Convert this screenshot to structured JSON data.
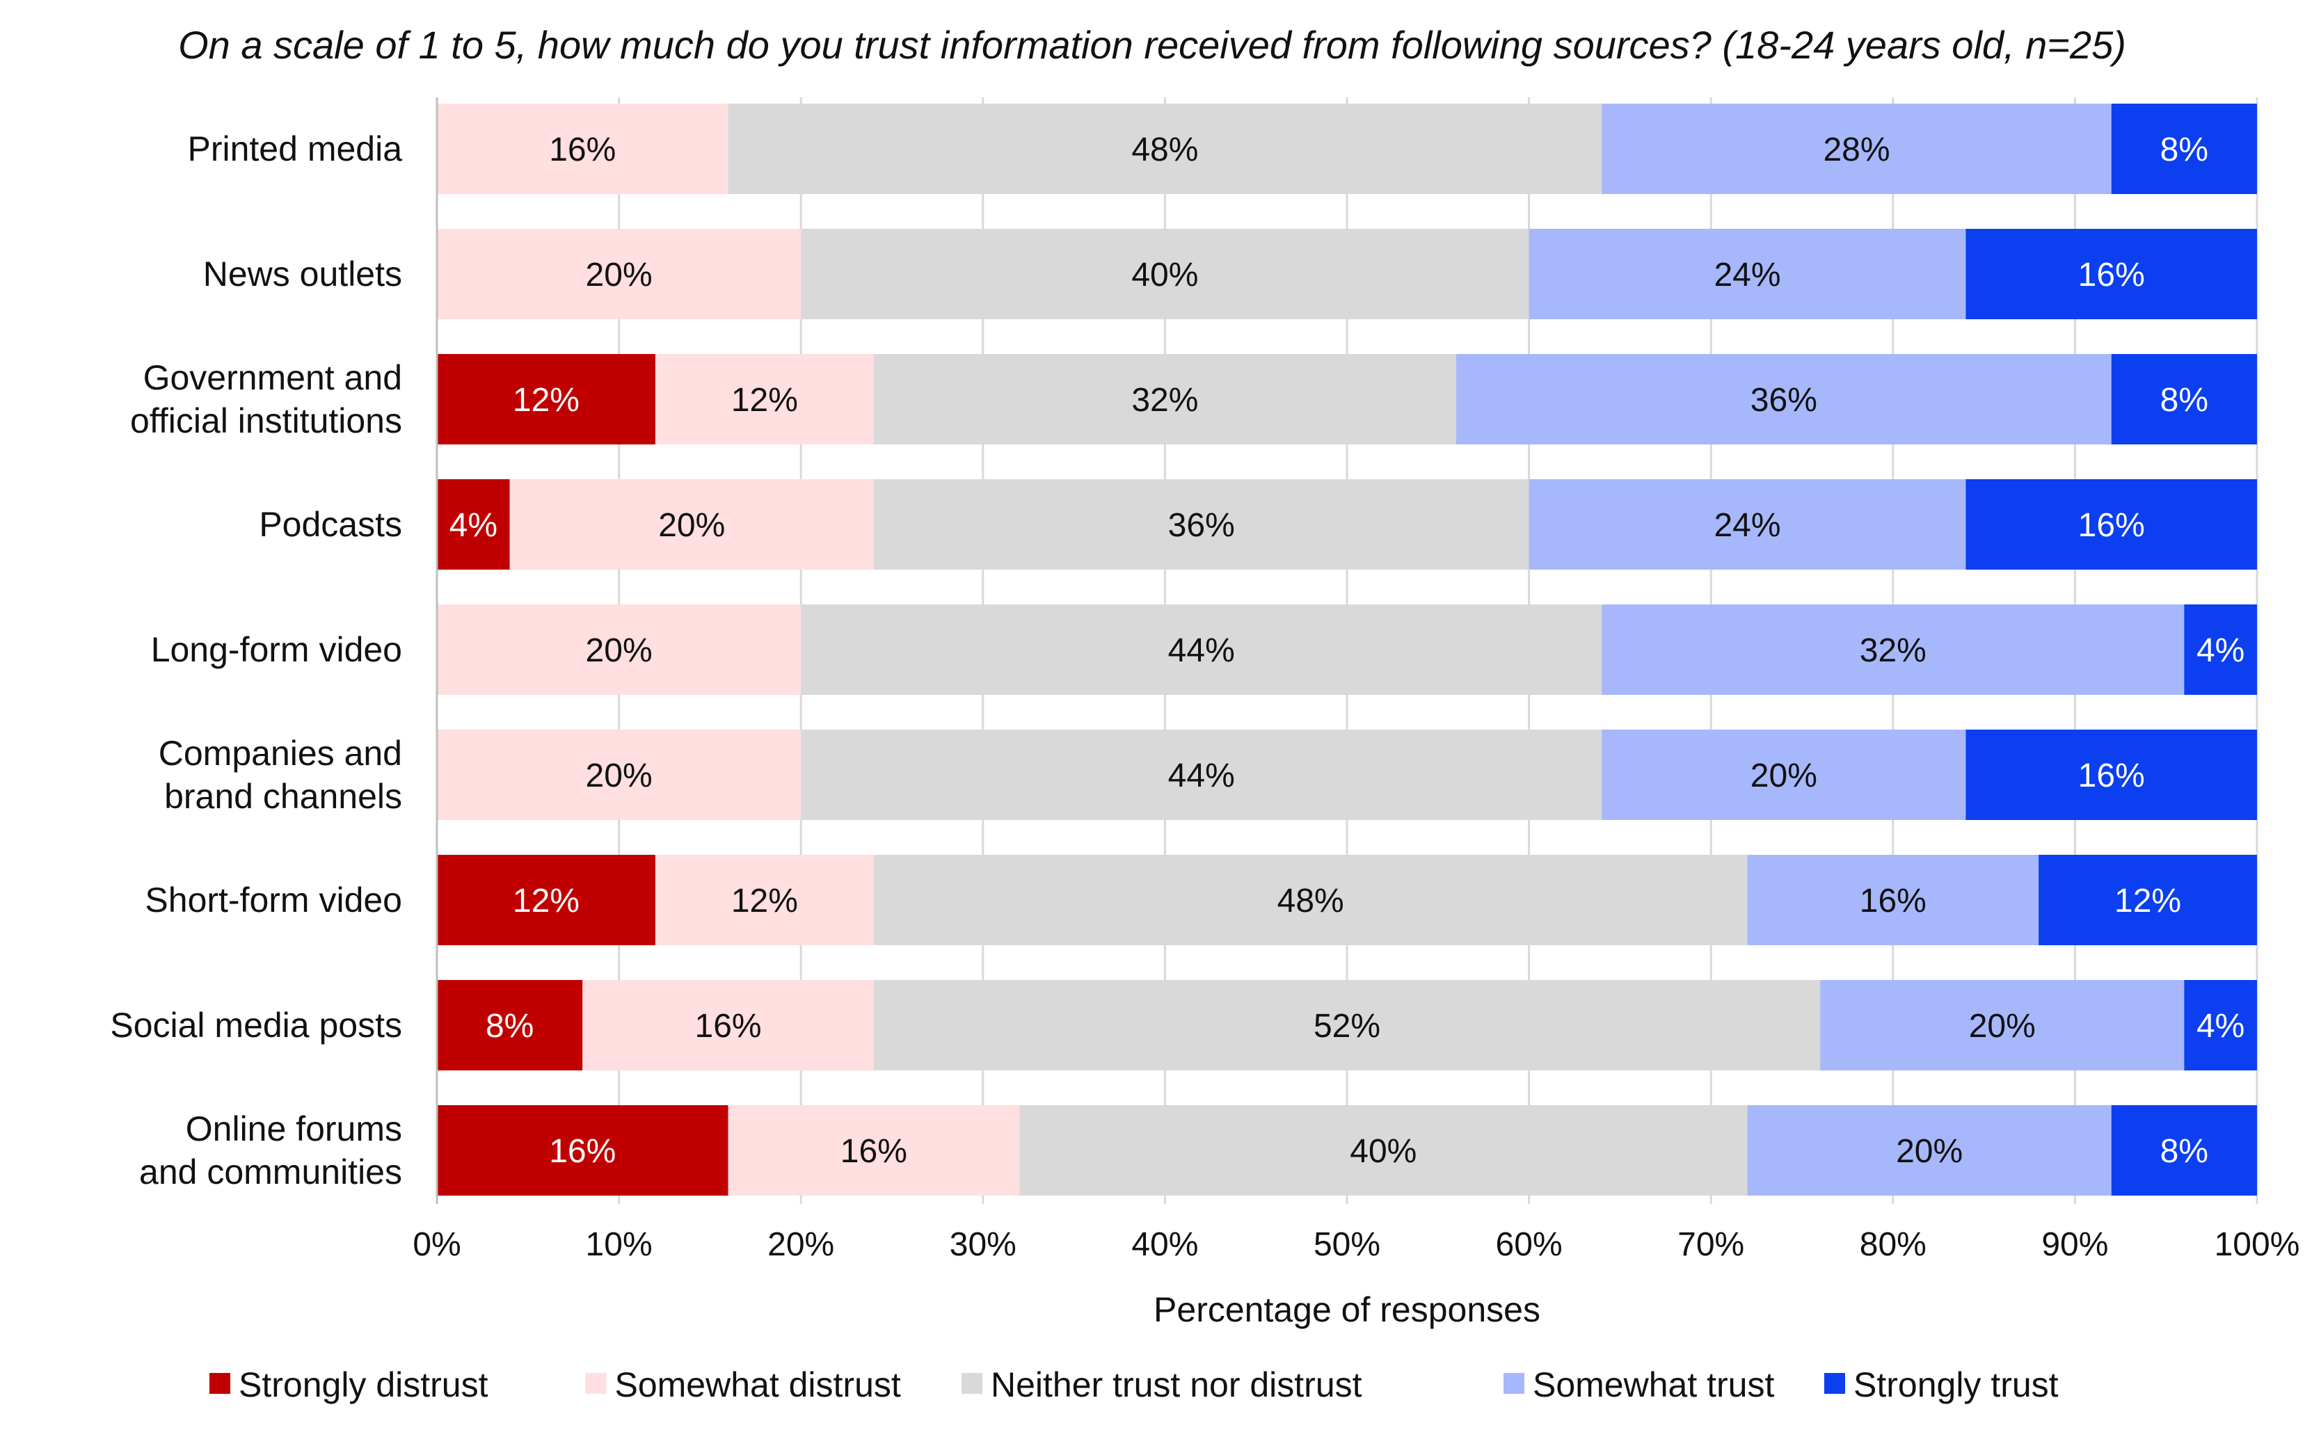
{
  "chart_data": {
    "type": "bar",
    "orientation": "horizontal",
    "stacked": true,
    "title": "On a scale of 1 to 5, how much do you trust information received from following sources? (18-24 years old, n=25)",
    "xlabel": "Percentage of responses",
    "ylabel": "",
    "xlim": [
      0,
      100
    ],
    "x_ticks": [
      "0%",
      "10%",
      "20%",
      "30%",
      "40%",
      "50%",
      "60%",
      "70%",
      "80%",
      "90%",
      "100%"
    ],
    "grid": true,
    "legend_position": "bottom",
    "categories": [
      [
        "Printed media"
      ],
      [
        "News outlets"
      ],
      [
        "Government and",
        "official institutions"
      ],
      [
        "Podcasts"
      ],
      [
        "Long-form video"
      ],
      [
        "Companies and",
        "brand channels"
      ],
      [
        "Short-form video"
      ],
      [
        "Social media posts"
      ],
      [
        "Online forums",
        "and communities"
      ]
    ],
    "series": [
      {
        "name": "Strongly distrust",
        "color": "#c00000",
        "label_color": "#ffffff",
        "values": [
          0,
          0,
          12,
          4,
          0,
          0,
          12,
          8,
          16
        ]
      },
      {
        "name": "Somewhat distrust",
        "color": "#ffdfdf",
        "label_color": "#111111",
        "values": [
          16,
          20,
          12,
          20,
          20,
          20,
          12,
          16,
          16
        ]
      },
      {
        "name": "Neither trust nor distrust",
        "color": "#d9d9d9",
        "label_color": "#111111",
        "values": [
          48,
          40,
          32,
          36,
          44,
          44,
          48,
          52,
          40
        ]
      },
      {
        "name": "Somewhat trust",
        "color": "#a6b8fb",
        "label_color": "#111111",
        "values": [
          28,
          24,
          36,
          24,
          32,
          20,
          16,
          20,
          20
        ]
      },
      {
        "name": "Strongly trust",
        "color": "#0b3ff0",
        "label_color": "#ffffff",
        "values": [
          8,
          16,
          8,
          16,
          4,
          16,
          12,
          4,
          8
        ]
      }
    ]
  }
}
